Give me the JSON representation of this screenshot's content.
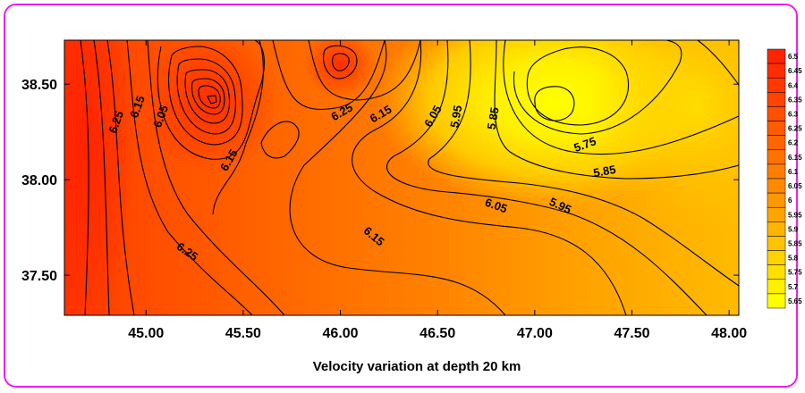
{
  "chart_data": {
    "type": "contour",
    "xlabel": "Velocity variation at depth 20 km",
    "ylabel": "",
    "xlim": [
      44.58,
      48.05
    ],
    "ylim": [
      37.29,
      38.73
    ],
    "x_ticks": [
      "45.00",
      "45.50",
      "46.00",
      "46.50",
      "47.00",
      "47.50",
      "48.00"
    ],
    "y_ticks": [
      "37.50",
      "38.00",
      "38.50"
    ],
    "colorbar": {
      "levels": [
        "6.5",
        "6.45",
        "6.4",
        "6.35",
        "6.3",
        "6.25",
        "6.2",
        "6.15",
        "6.1",
        "6.05",
        "6",
        "5.95",
        "5.9",
        "5.85",
        "5.8",
        "5.75",
        "5.7",
        "5.65"
      ],
      "colors": [
        "#ff2400",
        "#ff2d00",
        "#ff3800",
        "#ff4300",
        "#ff4f00",
        "#ff5b00",
        "#ff6600",
        "#ff7200",
        "#ff7e00",
        "#ff8a00",
        "#ff9700",
        "#ffa500",
        "#ffb400",
        "#ffc300",
        "#ffd200",
        "#ffe100",
        "#fff000",
        "#ffff00"
      ]
    },
    "contour_labels": [
      {
        "text": "6.25",
        "x": 44.85,
        "y": 38.3
      },
      {
        "text": "6.15",
        "x": 44.96,
        "y": 38.38
      },
      {
        "text": "6.05",
        "x": 45.08,
        "y": 38.33
      },
      {
        "text": "6.15",
        "x": 45.43,
        "y": 38.1
      },
      {
        "text": "6.25",
        "x": 46.01,
        "y": 38.35
      },
      {
        "text": "6.15",
        "x": 46.21,
        "y": 38.34
      },
      {
        "text": "6.05",
        "x": 46.48,
        "y": 38.33
      },
      {
        "text": "5.95",
        "x": 46.6,
        "y": 38.33
      },
      {
        "text": "5.85",
        "x": 46.79,
        "y": 38.32
      },
      {
        "text": "5.75",
        "x": 47.26,
        "y": 38.18
      },
      {
        "text": "5.85",
        "x": 47.36,
        "y": 38.04
      },
      {
        "text": "6.05",
        "x": 46.8,
        "y": 37.86
      },
      {
        "text": "5.95",
        "x": 47.13,
        "y": 37.86
      },
      {
        "text": "6.15",
        "x": 46.17,
        "y": 37.7
      },
      {
        "text": "6.25",
        "x": 45.21,
        "y": 37.62
      }
    ]
  }
}
